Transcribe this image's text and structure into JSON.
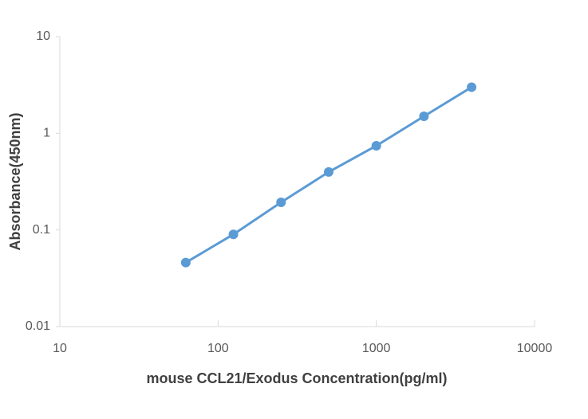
{
  "chart_data": {
    "type": "line",
    "x_label": "mouse CCL21/Exodus Concentration(pg/ml)",
    "y_label": "Absorbance(450nm)",
    "x": [
      62.5,
      125,
      250,
      500,
      1000,
      2000,
      4000
    ],
    "series": [
      {
        "color": "#5b9bd5",
        "values": [
          0.046,
          0.09,
          0.193,
          0.398,
          0.743,
          1.5,
          3.0
        ]
      }
    ],
    "xlim": [
      10,
      10000
    ],
    "ylim": [
      0.01,
      10
    ],
    "xticks": [
      10,
      100,
      1000,
      10000
    ],
    "yticks": [
      0.01,
      0.1,
      1,
      10
    ],
    "xscale": "log",
    "yscale": "log",
    "grid": false
  }
}
